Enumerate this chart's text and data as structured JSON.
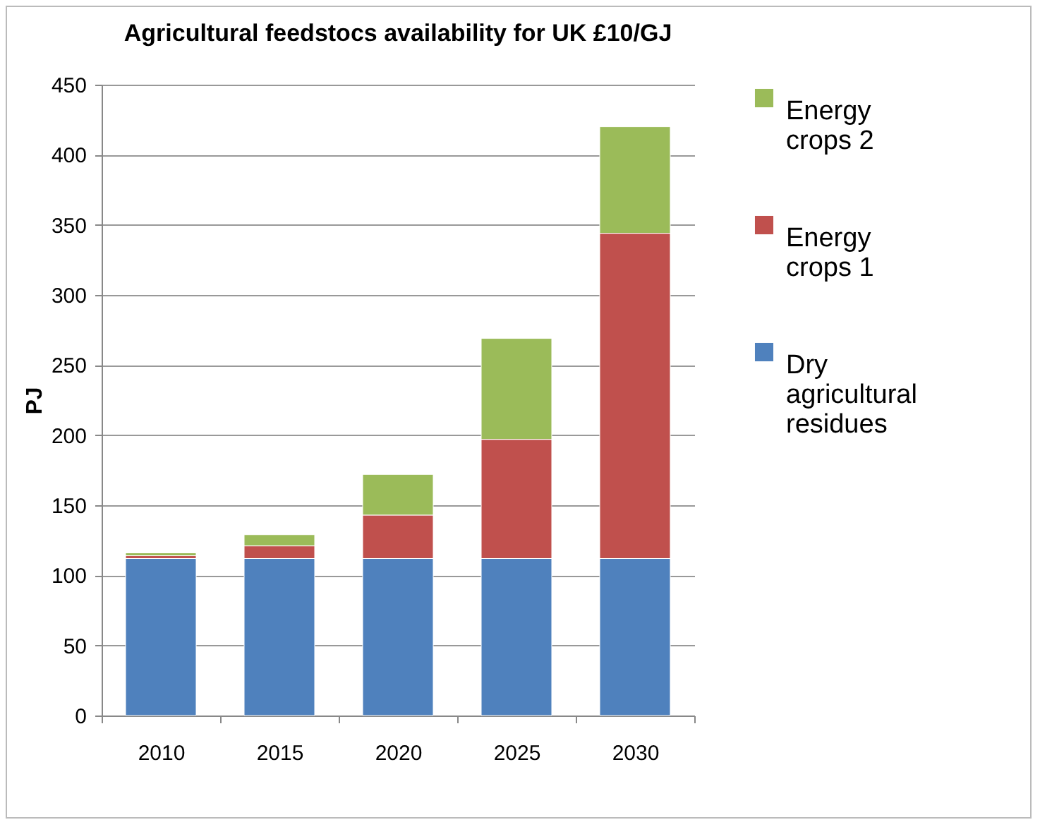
{
  "chart_data": {
    "type": "bar",
    "title": "Agricultural feedstocs availability for UK £10/GJ",
    "ylabel": "PJ",
    "categories": [
      "2010",
      "2015",
      "2020",
      "2025",
      "2030"
    ],
    "stacked": true,
    "series": [
      {
        "name": "Dry agricultural residues",
        "color": "#4f81bd",
        "values": [
          112,
          112,
          112,
          112,
          112
        ]
      },
      {
        "name": "Energy crops 1",
        "color": "#c0504d",
        "values": [
          2,
          9,
          31,
          85,
          232
        ]
      },
      {
        "name": "Energy crops 2",
        "color": "#9bbb59",
        "values": [
          2,
          8,
          29,
          72,
          76
        ]
      }
    ],
    "ylim": [
      0,
      450
    ],
    "yticks": [
      0,
      50,
      100,
      150,
      200,
      250,
      300,
      350,
      400,
      450
    ],
    "grid": "y",
    "legend": "right"
  }
}
